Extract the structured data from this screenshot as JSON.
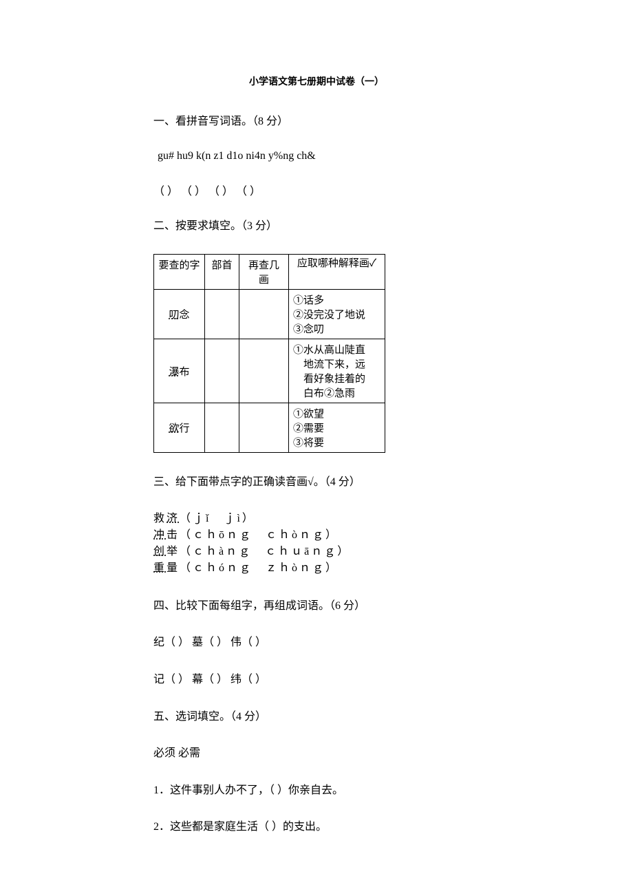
{
  "title": "小学语文第七册期中试卷（一）",
  "sections": {
    "one": {
      "heading": "一、看拼音写词语。（8 分）",
      "pinyin": "gu# hu9 k(n z1 d1o ni4n y%ng ch&",
      "blanks": "（ ）  （ ）  （ ）  （ ）"
    },
    "two": {
      "heading": "二、按要求填空。（3 分）",
      "table": {
        "headers": [
          "要查的字",
          "部首",
          "再查几画",
          "应取哪种解释画✓"
        ],
        "rows": [
          {
            "word": "叨念",
            "dotted_char": "叨",
            "meanings": "①话多\n②没完没了地说\n③念叨"
          },
          {
            "word": "瀑布",
            "dotted_char": "瀑",
            "meanings": "①水从高山陡直地流下来，远看好象挂着的白布②急雨"
          },
          {
            "word": "欲行",
            "dotted_char": "欲",
            "meanings": "①欲望\n②需要\n③将要"
          }
        ]
      }
    },
    "three": {
      "heading": "三、给下面带点字的正确读音画√。（4 分）",
      "items": [
        {
          "text": "救济",
          "dotted": "济",
          "options": "（jǐ  jì）"
        },
        {
          "text": "冲击",
          "dotted": "冲",
          "options": "（chōng  chòng）"
        },
        {
          "text": "创举",
          "dotted": "创",
          "options": "（chàng  chuāng）"
        },
        {
          "text": "重量",
          "dotted": "重",
          "options": "（chóng  zhòng）"
        }
      ]
    },
    "four": {
      "heading": "四、比较下面每组字，再组成词语。（6 分）",
      "line1": "纪（ ）  墓（ ）  伟（ ）",
      "line2": "记（ ）  幕（ ）  纬（ ）"
    },
    "five": {
      "heading": "五、选词填空。（4 分）",
      "words": "必须  必需",
      "q1": "1．这件事别人办不了，（ ）你亲自去。",
      "q2": "2．这些都是家庭生活（ ）的支出。"
    }
  },
  "styles": {
    "background_color": "#ffffff",
    "text_color": "#000000",
    "border_color": "#000000",
    "body_fontsize": 16,
    "title_fontsize": 14
  }
}
